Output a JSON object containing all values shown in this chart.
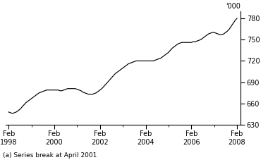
{
  "ylabel_unit": "'000",
  "footnote": "(a) Series break at April 2001",
  "ylim": [
    630,
    790
  ],
  "yticks": [
    630,
    660,
    690,
    720,
    750,
    780
  ],
  "xlim": [
    1997.95,
    2008.25
  ],
  "xtick_years": [
    1998,
    2000,
    2002,
    2004,
    2006,
    2008
  ],
  "line_color": "#000000",
  "background_color": "#ffffff",
  "linewidth": 0.85,
  "data_points": [
    [
      1998,
      2,
      648
    ],
    [
      1998,
      3,
      647
    ],
    [
      1998,
      4,
      646
    ],
    [
      1998,
      5,
      647
    ],
    [
      1998,
      6,
      648
    ],
    [
      1998,
      7,
      650
    ],
    [
      1998,
      8,
      652
    ],
    [
      1998,
      9,
      655
    ],
    [
      1998,
      10,
      658
    ],
    [
      1998,
      11,
      661
    ],
    [
      1998,
      12,
      663
    ],
    [
      1999,
      1,
      665
    ],
    [
      1999,
      2,
      667
    ],
    [
      1999,
      3,
      669
    ],
    [
      1999,
      4,
      671
    ],
    [
      1999,
      5,
      673
    ],
    [
      1999,
      6,
      675
    ],
    [
      1999,
      7,
      676
    ],
    [
      1999,
      8,
      677
    ],
    [
      1999,
      9,
      678
    ],
    [
      1999,
      10,
      679
    ],
    [
      1999,
      11,
      679
    ],
    [
      1999,
      12,
      679
    ],
    [
      2000,
      1,
      679
    ],
    [
      2000,
      2,
      679
    ],
    [
      2000,
      3,
      679
    ],
    [
      2000,
      4,
      679
    ],
    [
      2000,
      5,
      678
    ],
    [
      2000,
      6,
      678
    ],
    [
      2000,
      7,
      679
    ],
    [
      2000,
      8,
      680
    ],
    [
      2000,
      9,
      681
    ],
    [
      2000,
      10,
      681
    ],
    [
      2000,
      11,
      681
    ],
    [
      2000,
      12,
      681
    ],
    [
      2001,
      1,
      681
    ],
    [
      2001,
      2,
      680
    ],
    [
      2001,
      3,
      679
    ],
    [
      2001,
      4,
      678
    ],
    [
      2001,
      5,
      676
    ],
    [
      2001,
      6,
      675
    ],
    [
      2001,
      7,
      674
    ],
    [
      2001,
      8,
      673
    ],
    [
      2001,
      9,
      673
    ],
    [
      2001,
      10,
      673
    ],
    [
      2001,
      11,
      674
    ],
    [
      2001,
      12,
      675
    ],
    [
      2002,
      1,
      677
    ],
    [
      2002,
      2,
      679
    ],
    [
      2002,
      3,
      681
    ],
    [
      2002,
      4,
      684
    ],
    [
      2002,
      5,
      687
    ],
    [
      2002,
      6,
      690
    ],
    [
      2002,
      7,
      693
    ],
    [
      2002,
      8,
      696
    ],
    [
      2002,
      9,
      699
    ],
    [
      2002,
      10,
      702
    ],
    [
      2002,
      11,
      704
    ],
    [
      2002,
      12,
      706
    ],
    [
      2003,
      1,
      708
    ],
    [
      2003,
      2,
      710
    ],
    [
      2003,
      3,
      712
    ],
    [
      2003,
      4,
      714
    ],
    [
      2003,
      5,
      716
    ],
    [
      2003,
      6,
      717
    ],
    [
      2003,
      7,
      718
    ],
    [
      2003,
      8,
      719
    ],
    [
      2003,
      9,
      720
    ],
    [
      2003,
      10,
      720
    ],
    [
      2003,
      11,
      720
    ],
    [
      2003,
      12,
      720
    ],
    [
      2004,
      1,
      720
    ],
    [
      2004,
      2,
      720
    ],
    [
      2004,
      3,
      720
    ],
    [
      2004,
      4,
      720
    ],
    [
      2004,
      5,
      720
    ],
    [
      2004,
      6,
      720
    ],
    [
      2004,
      7,
      721
    ],
    [
      2004,
      8,
      722
    ],
    [
      2004,
      9,
      723
    ],
    [
      2004,
      10,
      724
    ],
    [
      2004,
      11,
      726
    ],
    [
      2004,
      12,
      728
    ],
    [
      2005,
      1,
      730
    ],
    [
      2005,
      2,
      732
    ],
    [
      2005,
      3,
      735
    ],
    [
      2005,
      4,
      738
    ],
    [
      2005,
      5,
      740
    ],
    [
      2005,
      6,
      742
    ],
    [
      2005,
      7,
      744
    ],
    [
      2005,
      8,
      745
    ],
    [
      2005,
      9,
      746
    ],
    [
      2005,
      10,
      746
    ],
    [
      2005,
      11,
      746
    ],
    [
      2005,
      12,
      746
    ],
    [
      2006,
      1,
      746
    ],
    [
      2006,
      2,
      746
    ],
    [
      2006,
      3,
      747
    ],
    [
      2006,
      4,
      747
    ],
    [
      2006,
      5,
      748
    ],
    [
      2006,
      6,
      749
    ],
    [
      2006,
      7,
      750
    ],
    [
      2006,
      8,
      752
    ],
    [
      2006,
      9,
      754
    ],
    [
      2006,
      10,
      756
    ],
    [
      2006,
      11,
      758
    ],
    [
      2006,
      12,
      759
    ],
    [
      2007,
      1,
      760
    ],
    [
      2007,
      2,
      760
    ],
    [
      2007,
      3,
      759
    ],
    [
      2007,
      4,
      758
    ],
    [
      2007,
      5,
      757
    ],
    [
      2007,
      6,
      757
    ],
    [
      2007,
      7,
      758
    ],
    [
      2007,
      8,
      760
    ],
    [
      2007,
      9,
      762
    ],
    [
      2007,
      10,
      765
    ],
    [
      2007,
      11,
      769
    ],
    [
      2007,
      12,
      773
    ],
    [
      2008,
      1,
      777
    ],
    [
      2008,
      2,
      780
    ]
  ]
}
